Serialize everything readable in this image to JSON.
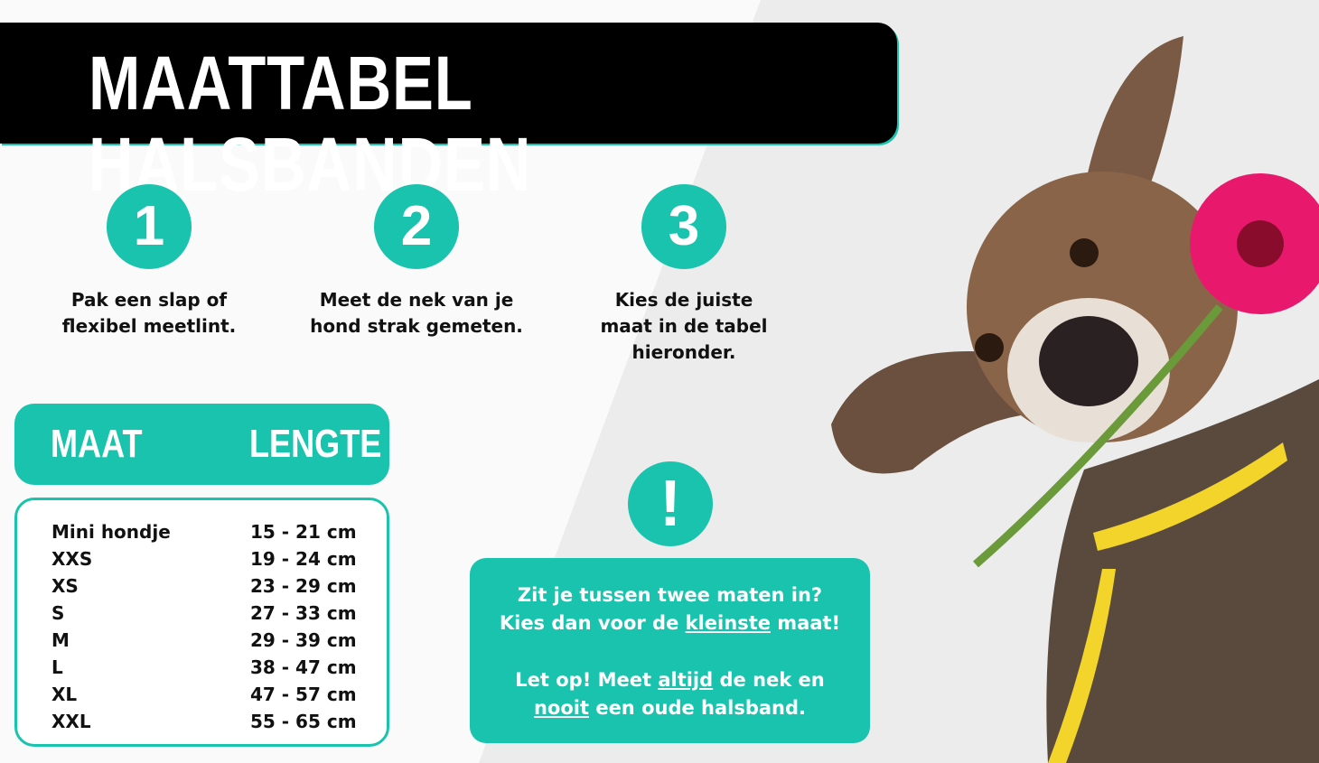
{
  "title": "MAATTABEL HALSBANDEN",
  "steps": [
    {
      "number": "1",
      "text_line1": "Pak een slap of",
      "text_line2": "flexibel meetlint."
    },
    {
      "number": "2",
      "text_line1": "Meet de nek van je",
      "text_line2": "hond strak gemeten."
    },
    {
      "number": "3",
      "text_line1": "Kies de juiste",
      "text_line2": "maat in de tabel",
      "text_line3": "hieronder."
    }
  ],
  "table": {
    "headers": {
      "size": "MAAT",
      "length": "LENGTE"
    },
    "rows": [
      {
        "size": "Mini hondje",
        "length": "15 - 21 cm"
      },
      {
        "size": "XXS",
        "length": "19 - 24 cm"
      },
      {
        "size": "XS",
        "length": "23 - 29 cm"
      },
      {
        "size": "S",
        "length": "27 - 33 cm"
      },
      {
        "size": "M",
        "length": "29 - 39 cm"
      },
      {
        "size": "L",
        "length": "38 - 47 cm"
      },
      {
        "size": "XL",
        "length": "47 - 57 cm"
      },
      {
        "size": "XXL",
        "length": "55 - 65 cm"
      }
    ]
  },
  "warning": {
    "icon": "!",
    "line1": "Zit je tussen twee maten in?",
    "line2_pre": "Kies dan voor de ",
    "line2_em": "kleinste",
    "line2_post": " maat!",
    "line3_pre": "Let op! Meet ",
    "line3_em": "altijd",
    "line3_post": " de nek en",
    "line4_em": "nooit",
    "line4_post": " een oude halsband."
  },
  "colors": {
    "accent": "#19c3ad",
    "banner": "#000000",
    "background": "#fafafa",
    "background_alt": "#ececec"
  },
  "image": "dog-with-flower-and-measuring-tape"
}
